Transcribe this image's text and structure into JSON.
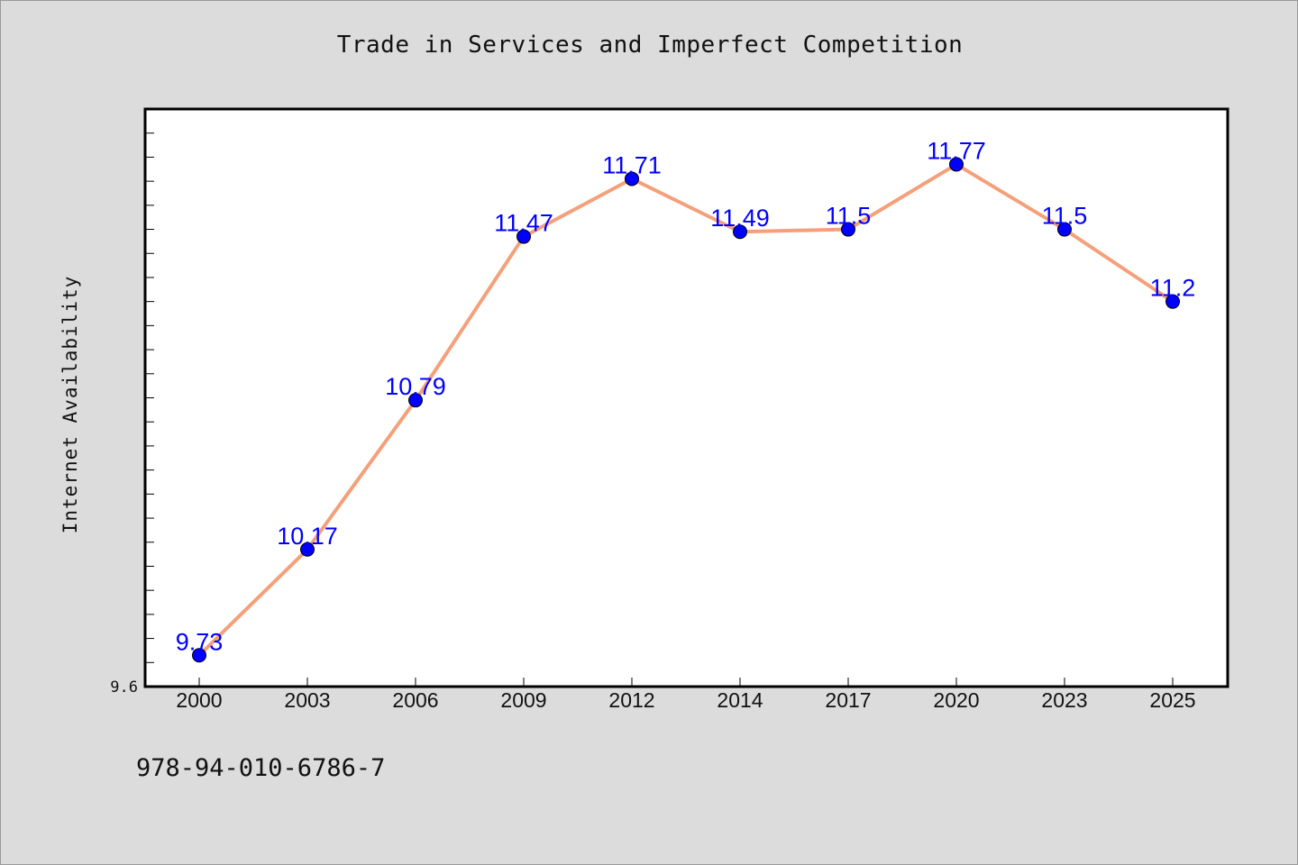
{
  "chart_data": {
    "type": "line",
    "title": "Trade in Services and Imperfect Competition",
    "xlabel": "",
    "ylabel": "Internet Availability",
    "categories": [
      "2000",
      "2003",
      "2006",
      "2009",
      "2012",
      "2014",
      "2017",
      "2020",
      "2023",
      "2025"
    ],
    "series": [
      {
        "values": [
          9.73,
          10.17,
          10.79,
          11.47,
          11.71,
          11.49,
          11.5,
          11.77,
          11.5,
          11.2
        ]
      }
    ],
    "y_tick_label": "9.6",
    "ylim": [
      9.6,
      12.0
    ],
    "grid": false,
    "legend": "none",
    "colors": {
      "line": "#f4a07a",
      "marker": "#0000ff",
      "data_label": "#0000ff",
      "background": "#dcdcdc",
      "plot_background": "#ffffff"
    }
  },
  "footer": {
    "isbn": "978-94-010-6786-7"
  }
}
